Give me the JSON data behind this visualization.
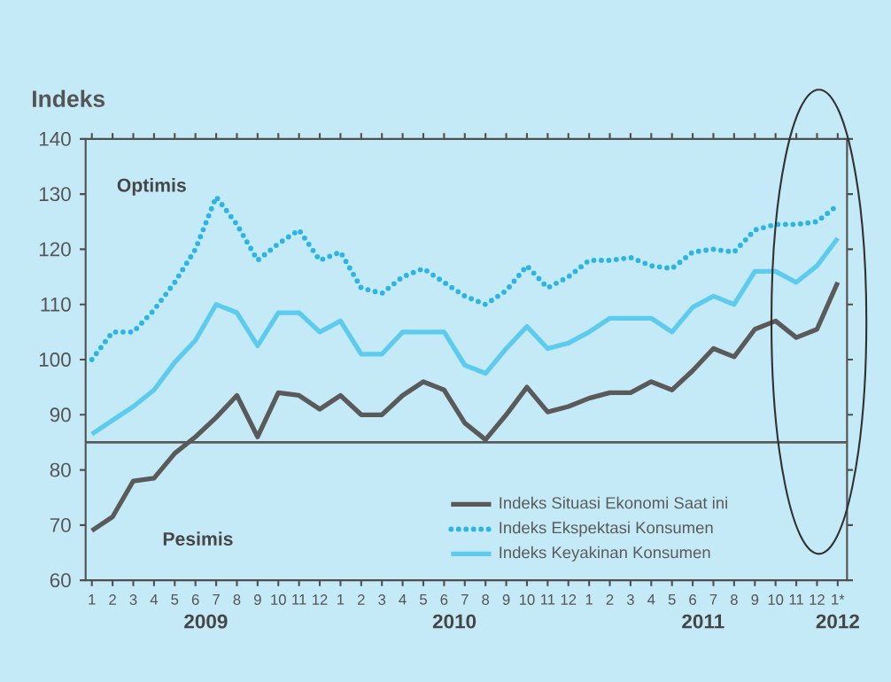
{
  "chart_data": {
    "type": "line",
    "ylabel": "Indeks",
    "categories": [
      "1",
      "2",
      "3",
      "4",
      "5",
      "6",
      "7",
      "8",
      "9",
      "10",
      "11",
      "12",
      "1",
      "2",
      "3",
      "4",
      "5",
      "6",
      "7",
      "8",
      "9",
      "10",
      "11",
      "12",
      "1",
      "2",
      "3",
      "4",
      "5",
      "6",
      "7",
      "8",
      "9",
      "10",
      "11",
      "12",
      "1*"
    ],
    "series": [
      {
        "name": "Indeks Situasi Ekonomi Saat ini",
        "color": "#5a5a5a",
        "line_style": "solid",
        "values": [
          69,
          71.5,
          78,
          78.5,
          83,
          86,
          89.5,
          93.5,
          86,
          94,
          93.5,
          91,
          93.5,
          90,
          90,
          93.5,
          96,
          94.5,
          88.5,
          85.5,
          90,
          95,
          90.5,
          91.5,
          93,
          94,
          94,
          96,
          94.5,
          98,
          102,
          100.5,
          105.5,
          107,
          104,
          105.5,
          114
        ]
      },
      {
        "name": "Indeks Ekspektasi Konsumen",
        "color": "#2bb5e6",
        "line_style": "dotted",
        "values": [
          100,
          105,
          105,
          109,
          114,
          120,
          129.5,
          124.5,
          118,
          121,
          123.5,
          118,
          119.5,
          113,
          112,
          115,
          116.5,
          114,
          111.5,
          110,
          112.5,
          117,
          113,
          115,
          118,
          118,
          118.5,
          117,
          116.5,
          119.5,
          120,
          119.5,
          123.5,
          124.5,
          124.5,
          125,
          128
        ]
      },
      {
        "name": "Indeks Keyakinan Konsumen",
        "color": "#5ccbee",
        "line_style": "solid",
        "values": [
          86.5,
          89,
          91.5,
          94.5,
          99.5,
          103.5,
          110,
          108.5,
          102.5,
          108.5,
          108.5,
          105,
          107,
          101,
          101,
          105,
          105,
          105,
          99,
          97.5,
          102,
          106,
          102,
          103,
          105,
          107.5,
          107.5,
          107.5,
          105,
          109.5,
          111.5,
          110,
          116,
          116,
          114,
          117,
          122
        ]
      }
    ],
    "ylim": [
      60,
      140
    ],
    "yticks": [
      60,
      70,
      80,
      90,
      100,
      110,
      120,
      130,
      140
    ],
    "ref_lines": [
      {
        "axis": "y",
        "value": 85,
        "color": "#5a5a5a"
      }
    ],
    "legend": "bottom right",
    "marker": "none",
    "annotations": [
      "Optimis",
      "Pesimis",
      "2009",
      "2010",
      "2011",
      "2012"
    ]
  }
}
